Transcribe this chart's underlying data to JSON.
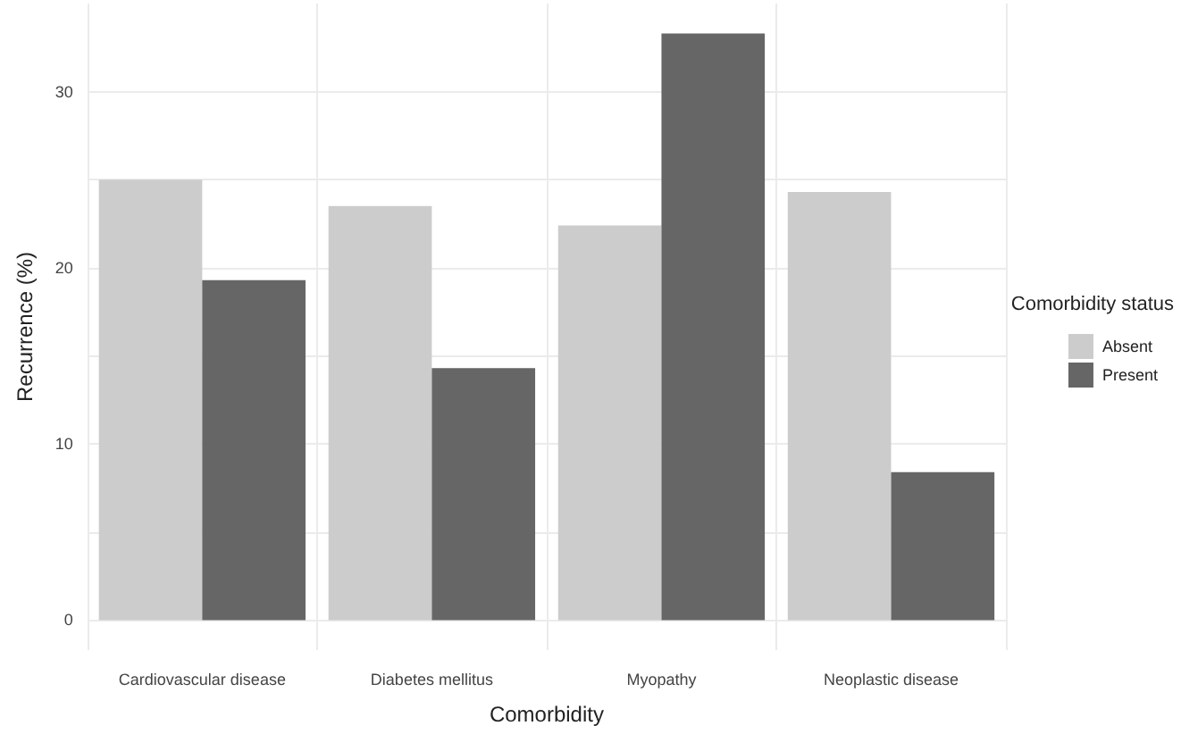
{
  "chart_data": {
    "type": "bar",
    "xlabel": "Comorbidity",
    "ylabel": "Recurrence (%)",
    "legend_title": "Comorbidity status",
    "categories": [
      "Cardiovascular disease",
      "Diabetes mellitus",
      "Myopathy",
      "Neoplastic disease"
    ],
    "series": [
      {
        "name": "Absent",
        "color": "#cccccc",
        "values": [
          25.0,
          23.5,
          22.4,
          24.3
        ]
      },
      {
        "name": "Present",
        "color": "#666666",
        "values": [
          19.3,
          14.3,
          33.3,
          8.4
        ]
      }
    ],
    "ylim": [
      -1.7,
      35
    ],
    "yticks": [
      0,
      {
        "value": 5,
        "label": null
      },
      10,
      {
        "value": 15,
        "label": null
      },
      20,
      {
        "value": 25,
        "label": null
      },
      30
    ],
    "grid": true,
    "legend": "right"
  }
}
